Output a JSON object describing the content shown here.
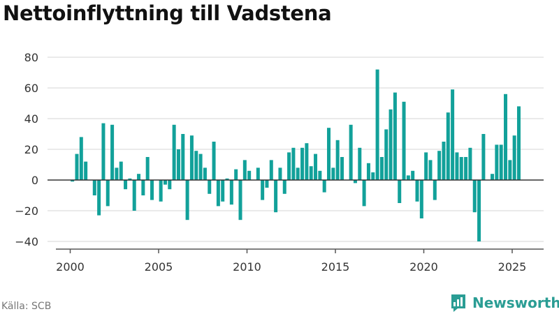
{
  "title": "Nettoinflyttning till Vadstena",
  "source": "Källa: SCB",
  "brand": {
    "name": "Newsworthy",
    "icon": "newsworthy-logo-icon",
    "color": "#2a9d94"
  },
  "chart_data": {
    "type": "bar",
    "title": "Nettoinflyttning till Vadstena",
    "xlabel": "",
    "ylabel": "",
    "frequency": "quarterly",
    "start": "2000-Q1",
    "xticks": [
      "2000",
      "2005",
      "2010",
      "2015",
      "2020",
      "2025"
    ],
    "yticks": [
      -40,
      -20,
      0,
      20,
      40,
      60,
      80
    ],
    "ylim": [
      -42,
      85
    ],
    "xlim": [
      "2000-Q1",
      "2025-Q2"
    ],
    "grid": true,
    "bar_color": "#12a19a",
    "values": [
      -1,
      17,
      28,
      12,
      0,
      -10,
      -23,
      37,
      -17,
      36,
      8,
      12,
      -6,
      1,
      -20,
      4,
      -10,
      15,
      -13,
      0,
      -14,
      -3,
      -6,
      36,
      20,
      30,
      -26,
      29,
      19,
      17,
      8,
      -9,
      25,
      -17,
      -14,
      1,
      -16,
      7,
      -26,
      13,
      6,
      0,
      8,
      -13,
      -5,
      13,
      -21,
      8,
      -9,
      18,
      21,
      8,
      21,
      24,
      9,
      17,
      6,
      -8,
      34,
      8,
      26,
      15,
      0,
      36,
      -2,
      21,
      -17,
      11,
      5,
      72,
      15,
      33,
      46,
      57,
      -15,
      51,
      3,
      6,
      -14,
      -25,
      18,
      13,
      -13,
      19,
      25,
      44,
      59,
      18,
      15,
      15,
      21,
      -21,
      -40,
      30,
      0,
      4,
      23,
      23,
      56,
      13,
      29,
      48
    ]
  }
}
